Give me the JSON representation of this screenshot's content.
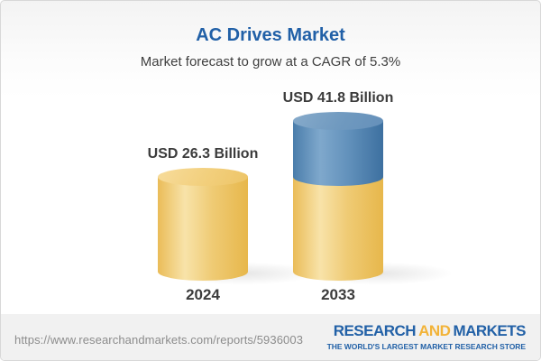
{
  "header": {
    "title": "AC Drives Market",
    "subtitle": "Market forecast to grow at a CAGR of 5.3%"
  },
  "chart_data": {
    "type": "bar",
    "variant": "3d-cylinder",
    "title": "AC Drives Market",
    "subtitle": "Market forecast to grow at a CAGR of 5.3%",
    "unit": "USD Billion",
    "cagr_percent": 5.3,
    "categories": [
      "2024",
      "2033"
    ],
    "values": [
      26.3,
      41.8
    ],
    "bars": [
      {
        "category": "2024",
        "value": 26.3,
        "label": "USD 26.3 Billion",
        "segments": [
          {
            "value": 26.3,
            "color_key": "gold"
          }
        ]
      },
      {
        "category": "2033",
        "value": 41.8,
        "label": "USD 41.8 Billion",
        "segments": [
          {
            "value": 26.3,
            "color_key": "gold"
          },
          {
            "value": 15.5,
            "color_key": "blue"
          }
        ]
      }
    ],
    "colors": {
      "gold": "#F0C268",
      "blue": "#5586B2"
    },
    "legend": "none",
    "grid": "off"
  },
  "footer": {
    "url": "https://www.researchandmarkets.com/reports/5936003",
    "logo": {
      "word1": "RESEARCH",
      "word2": "AND",
      "word3": "MARKETS",
      "tagline": "THE WORLD'S LARGEST MARKET RESEARCH STORE"
    }
  },
  "theme_colors": {
    "title_blue": "#2160A7",
    "logo_blue": "#2261A7",
    "logo_gold": "#F2B338",
    "text_dark": "#3C3C3C",
    "url_gray": "#8C8C8C",
    "footer_bg": "#F1F1F1"
  }
}
